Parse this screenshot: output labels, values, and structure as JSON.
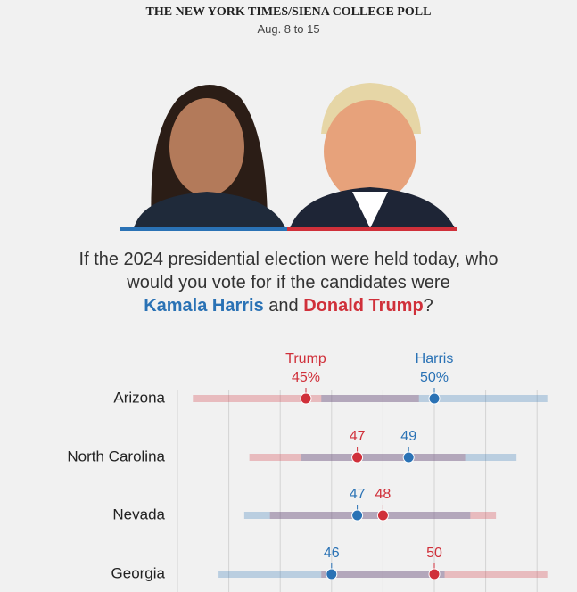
{
  "header": {
    "title": "THE NEW YORK TIMES/SIENA COLLEGE POLL",
    "subtitle": "Aug. 8 to 15"
  },
  "question": {
    "text": "If the 2024 presidential election were held today, who would you vote for if the candidates were",
    "candidate_1": "Kamala Harris",
    "joiner": "and",
    "candidate_2": "Donald Trump",
    "end": "?"
  },
  "chart_data": {
    "type": "dotrange",
    "categories": [
      "Arizona",
      "North Carolina",
      "Nevada",
      "Georgia"
    ],
    "series": [
      {
        "name": "Trump",
        "color": "#d0303a",
        "values": [
          45,
          47,
          48,
          50
        ],
        "value_labels": [
          "45%",
          "47",
          "48",
          "50"
        ],
        "errors": [
          4.4,
          4.2,
          4.4,
          4.4
        ]
      },
      {
        "name": "Harris",
        "color": "#2a72b5",
        "values": [
          50,
          49,
          47,
          46
        ],
        "value_labels": [
          "50%",
          "49",
          "47",
          "46"
        ],
        "errors": [
          4.4,
          4.2,
          4.4,
          4.4
        ]
      }
    ],
    "xlim": [
      40,
      55
    ],
    "gridlines": [
      40,
      42,
      44,
      46,
      48,
      50,
      52,
      54
    ],
    "grid": true
  }
}
